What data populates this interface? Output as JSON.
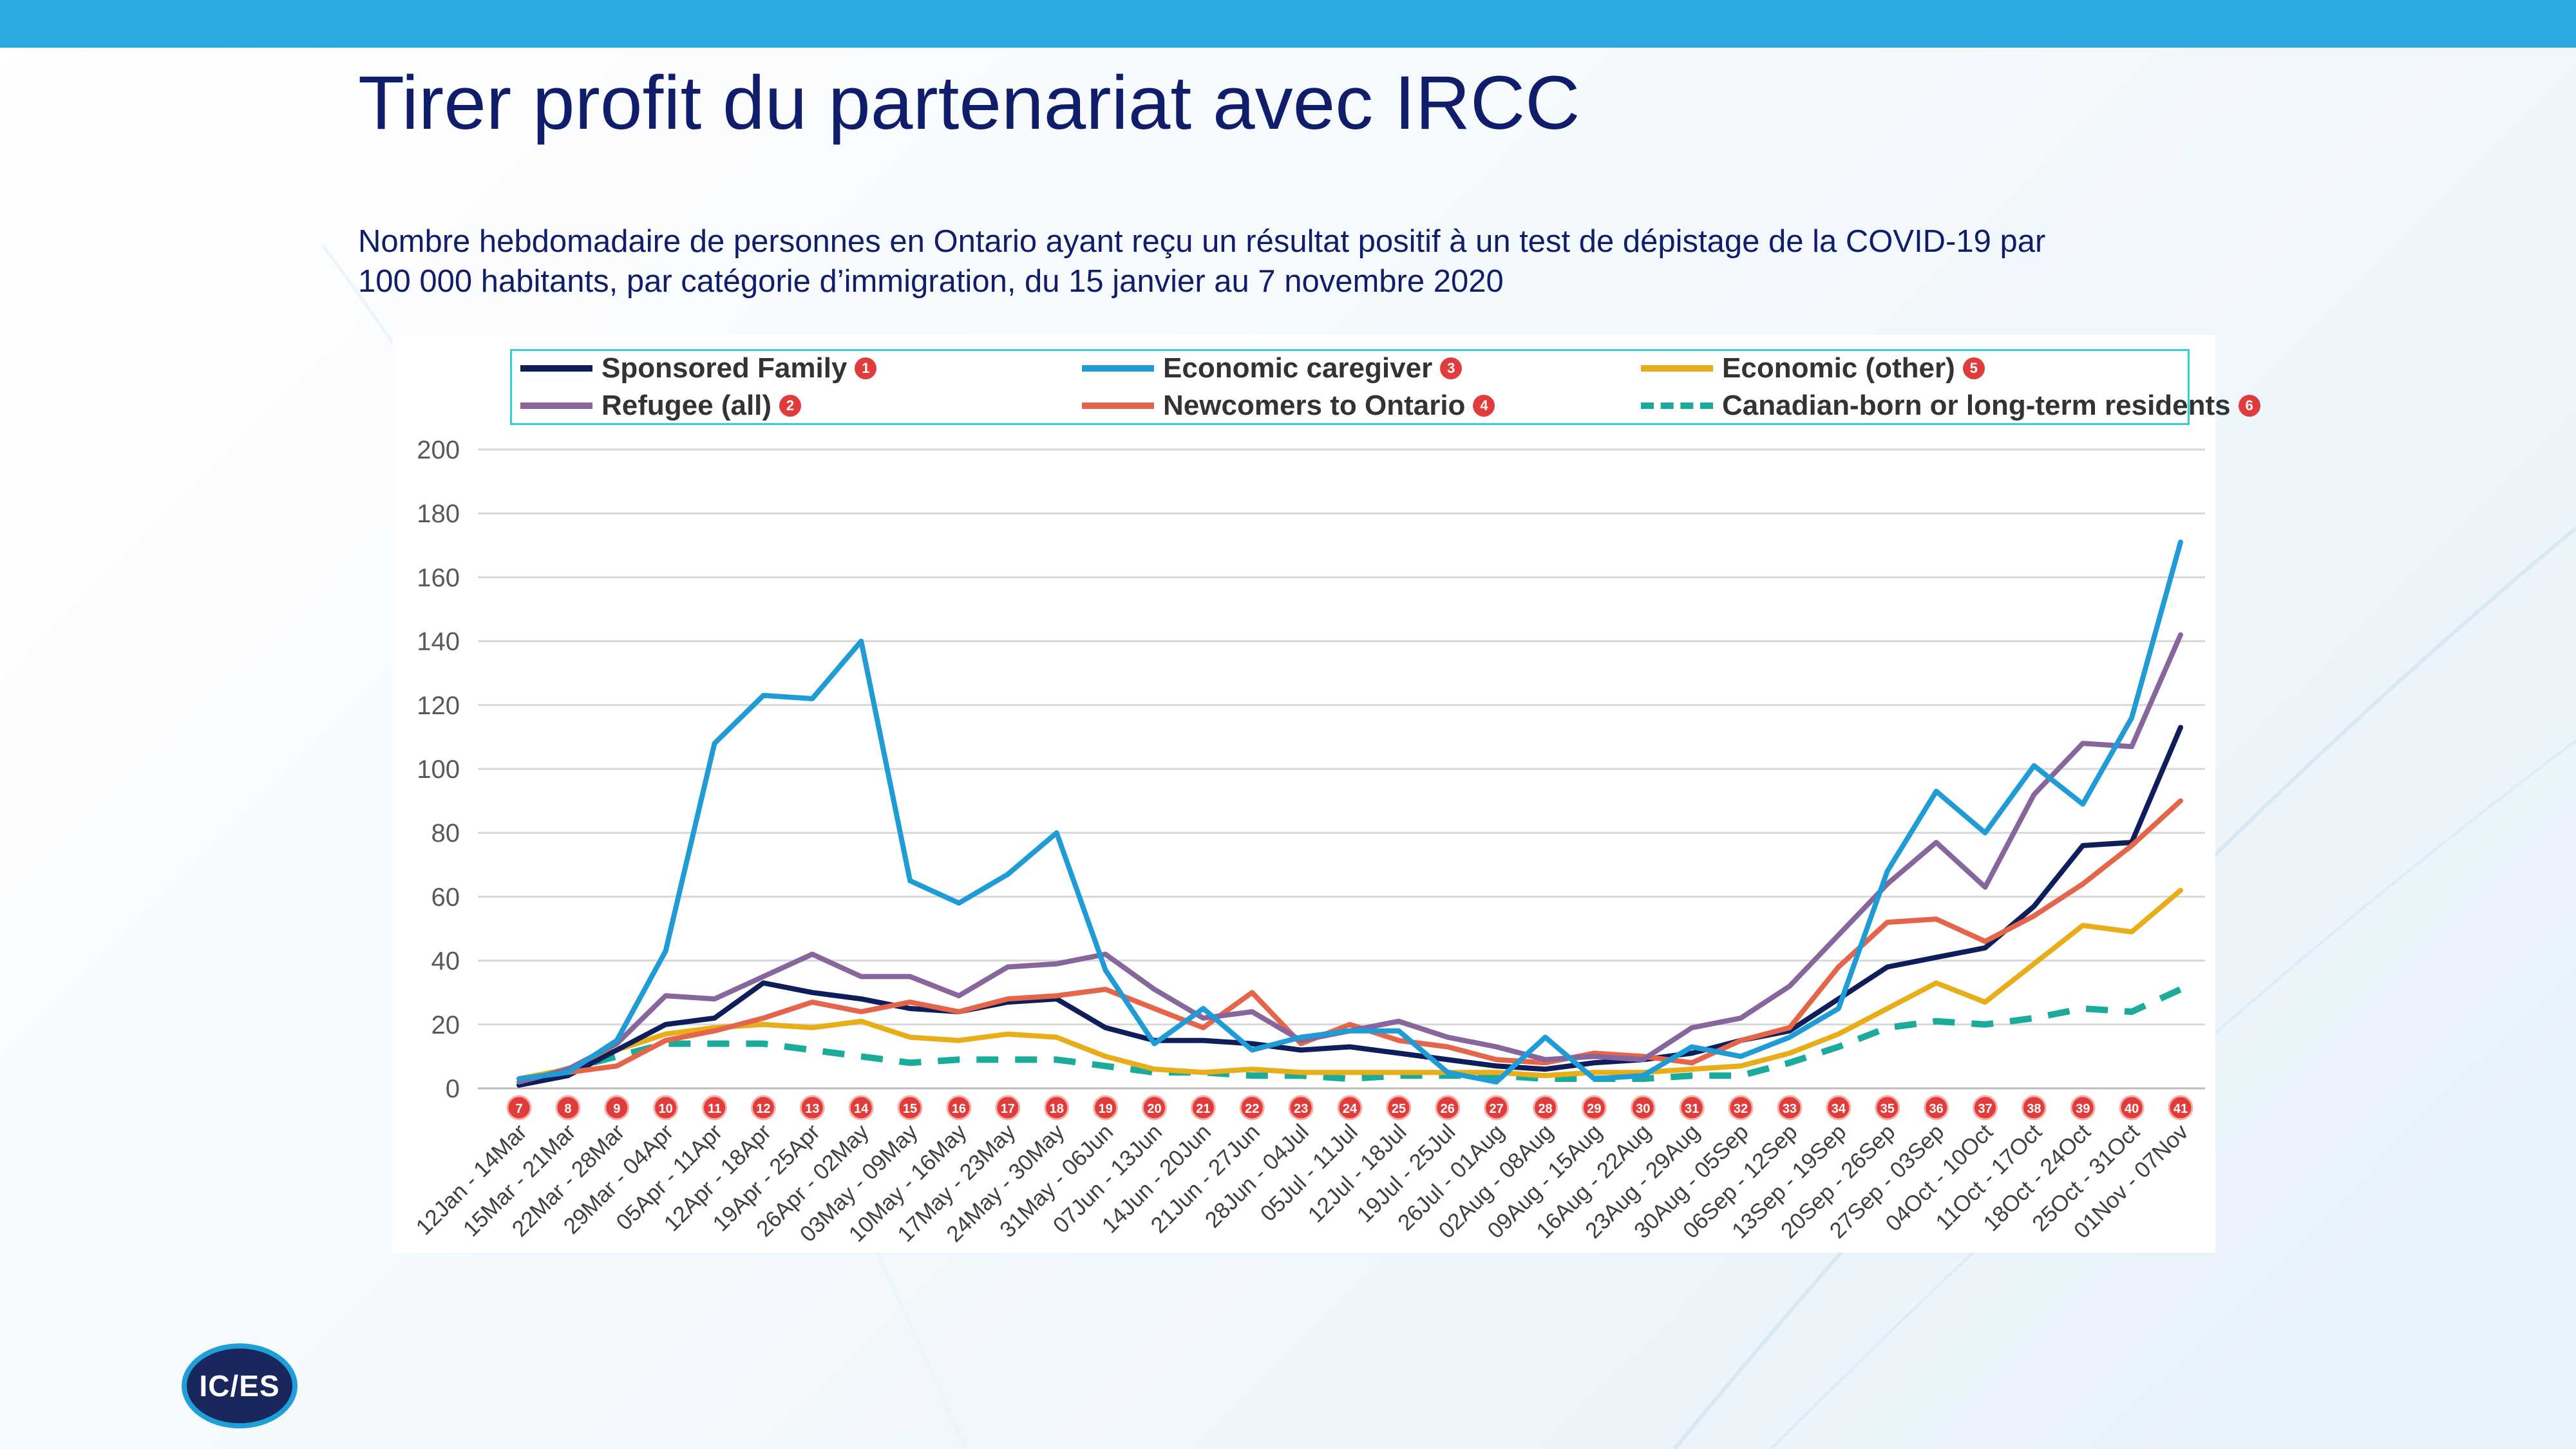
{
  "slide": {
    "title": "Tirer profit du partenariat avec IRCC",
    "subtitle_line1": "Nombre hebdomadaire de personnes en Ontario ayant reçu un résultat positif à un test de dépistage de la COVID-19 par",
    "subtitle_line2": "100 000 habitants, par catégorie d’immigration, du 15 janvier au 7 novembre 2020",
    "logo_text": "IC/ES",
    "accent_color": "#2ba8e0"
  },
  "legend": [
    {
      "label": "Sponsored Family",
      "badge": "1"
    },
    {
      "label": "Economic caregiver",
      "badge": "3"
    },
    {
      "label": "Economic (other)",
      "badge": "5"
    },
    {
      "label": "Refugee (all)",
      "badge": "2"
    },
    {
      "label": "Newcomers to Ontario",
      "badge": "4"
    },
    {
      "label": "Canadian-born or long-term residents",
      "badge": "6"
    }
  ],
  "chart_data": {
    "type": "line",
    "title": "",
    "xlabel": "",
    "ylabel": "",
    "ylim": [
      0,
      200
    ],
    "yticks": [
      0,
      20,
      40,
      60,
      80,
      100,
      120,
      140,
      160,
      180,
      200
    ],
    "grid": true,
    "legend_position": "top",
    "categories": [
      "12Jan - 14Mar",
      "15Mar - 21Mar",
      "22Mar - 28Mar",
      "29Mar - 04Apr",
      "05Apr - 11Apr",
      "12Apr - 18Apr",
      "19Apr - 25Apr",
      "26Apr - 02May",
      "03May - 09May",
      "10May - 16May",
      "17May - 23May",
      "24May - 30May",
      "31May - 06Jun",
      "07Jun - 13Jun",
      "14Jun - 20Jun",
      "21Jun - 27Jun",
      "28Jun - 04Jul",
      "05Jul - 11Jul",
      "12Jul - 18Jul",
      "19Jul - 25Jul",
      "26Jul - 01Aug",
      "02Aug - 08Aug",
      "09Aug - 15Aug",
      "16Aug - 22Aug",
      "23Aug - 29Aug",
      "30Aug - 05Sep",
      "06Sep - 12Sep",
      "13Sep - 19Sep",
      "20Sep - 26Sep",
      "27Sep - 03Sep",
      "04Oct - 10Oct",
      "11Oct - 17Oct",
      "18Oct - 24Oct",
      "25Oct - 31Oct",
      "01Nov - 07Nov"
    ],
    "badges": [
      "7",
      "8",
      "9",
      "10",
      "11",
      "12",
      "13",
      "14",
      "15",
      "16",
      "17",
      "18",
      "19",
      "20",
      "21",
      "22",
      "23",
      "24",
      "25",
      "26",
      "27",
      "28",
      "29",
      "30",
      "31",
      "32",
      "33",
      "34",
      "35",
      "36",
      "37",
      "38",
      "39",
      "40",
      "41"
    ],
    "series": [
      {
        "name": "Canadian-born or long-term residents",
        "color": "#1aab9b",
        "dashed": true,
        "values": [
          2,
          6,
          10,
          14,
          14,
          14,
          12,
          10,
          8,
          9,
          9,
          9,
          7,
          5,
          5,
          4,
          4,
          3,
          4,
          4,
          4,
          3,
          3,
          3,
          4,
          4,
          8,
          13,
          19,
          21,
          20,
          22,
          25,
          24,
          31
        ]
      },
      {
        "name": "Economic (other)",
        "color": "#e8ae1a",
        "dashed": false,
        "values": [
          3,
          6,
          12,
          17,
          19,
          20,
          19,
          21,
          16,
          15,
          17,
          16,
          10,
          6,
          5,
          6,
          5,
          5,
          5,
          5,
          5,
          4,
          5,
          5,
          6,
          7,
          11,
          17,
          25,
          33,
          27,
          39,
          51,
          49,
          62
        ]
      },
      {
        "name": "Sponsored Family",
        "color": "#0e1e5b",
        "dashed": false,
        "values": [
          1,
          4,
          12,
          20,
          22,
          33,
          30,
          28,
          25,
          24,
          27,
          28,
          19,
          15,
          15,
          14,
          12,
          13,
          11,
          9,
          7,
          6,
          8,
          9,
          11,
          15,
          18,
          28,
          38,
          41,
          44,
          57,
          76,
          77,
          113
        ]
      },
      {
        "name": "Newcomers to Ontario",
        "color": "#e4654a",
        "dashed": false,
        "values": [
          3,
          5,
          7,
          15,
          18,
          22,
          27,
          24,
          27,
          24,
          28,
          29,
          31,
          25,
          19,
          30,
          14,
          20,
          15,
          13,
          9,
          8,
          11,
          10,
          8,
          15,
          19,
          38,
          52,
          53,
          46,
          54,
          64,
          76,
          90
        ]
      },
      {
        "name": "Refugee (all)",
        "color": "#87659d",
        "dashed": false,
        "values": [
          2,
          6,
          14,
          29,
          28,
          35,
          42,
          35,
          35,
          29,
          38,
          39,
          42,
          31,
          22,
          24,
          15,
          18,
          21,
          16,
          13,
          9,
          10,
          9,
          19,
          22,
          32,
          48,
          64,
          77,
          63,
          92,
          108,
          107,
          142
        ]
      },
      {
        "name": "Economic caregiver",
        "color": "#1f9cd5",
        "dashed": false,
        "values": [
          3,
          5,
          15,
          43,
          108,
          123,
          122,
          140,
          65,
          58,
          67,
          80,
          37,
          14,
          25,
          12,
          16,
          18,
          18,
          5,
          2,
          16,
          3,
          4,
          13,
          10,
          16,
          25,
          68,
          93,
          80,
          101,
          89,
          116,
          171
        ]
      }
    ]
  }
}
